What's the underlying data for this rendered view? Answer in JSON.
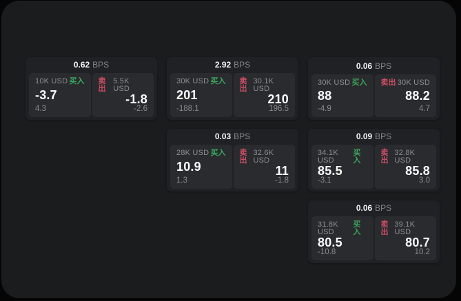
{
  "labels": {
    "bps_unit": "BPS",
    "buy": "买入",
    "sell": "卖出"
  },
  "colors": {
    "surface": "#1b1c1e",
    "card": "#202124",
    "cell": "#2a2b2e",
    "buy": "#3ba55d",
    "sell": "#cb4e64"
  },
  "cards": [
    {
      "row": 1,
      "col": 1,
      "bps": "0.62",
      "buy": {
        "size": "10K USD",
        "price": "-3.7",
        "delta": "4.3"
      },
      "sell": {
        "size": "5.5K USD",
        "price": "-1.8",
        "delta": "-2.6"
      }
    },
    {
      "row": 1,
      "col": 2,
      "bps": "2.92",
      "buy": {
        "size": "30K USD",
        "price": "201",
        "delta": "-188.1"
      },
      "sell": {
        "size": "30.1K USD",
        "price": "210",
        "delta": "196.5"
      }
    },
    {
      "row": 1,
      "col": 3,
      "bps": "0.06",
      "buy": {
        "size": "30K USD",
        "price": "88",
        "delta": "-4.9"
      },
      "sell": {
        "size": "30K USD",
        "price": "88.2",
        "delta": "4.7"
      }
    },
    {
      "row": 2,
      "col": 2,
      "bps": "0.03",
      "buy": {
        "size": "28K USD",
        "price": "10.9",
        "delta": "1.3"
      },
      "sell": {
        "size": "32.6K USD",
        "price": "11",
        "delta": "-1.8"
      }
    },
    {
      "row": 2,
      "col": 3,
      "bps": "0.09",
      "buy": {
        "size": "34.1K USD",
        "price": "85.5",
        "delta": "-3.1"
      },
      "sell": {
        "size": "32.8K USD",
        "price": "85.8",
        "delta": "3.0"
      }
    },
    {
      "row": 3,
      "col": 3,
      "bps": "0.06",
      "buy": {
        "size": "31.8K USD",
        "price": "80.5",
        "delta": "-10.8"
      },
      "sell": {
        "size": "39.1K USD",
        "price": "80.7",
        "delta": "10.2"
      }
    }
  ]
}
